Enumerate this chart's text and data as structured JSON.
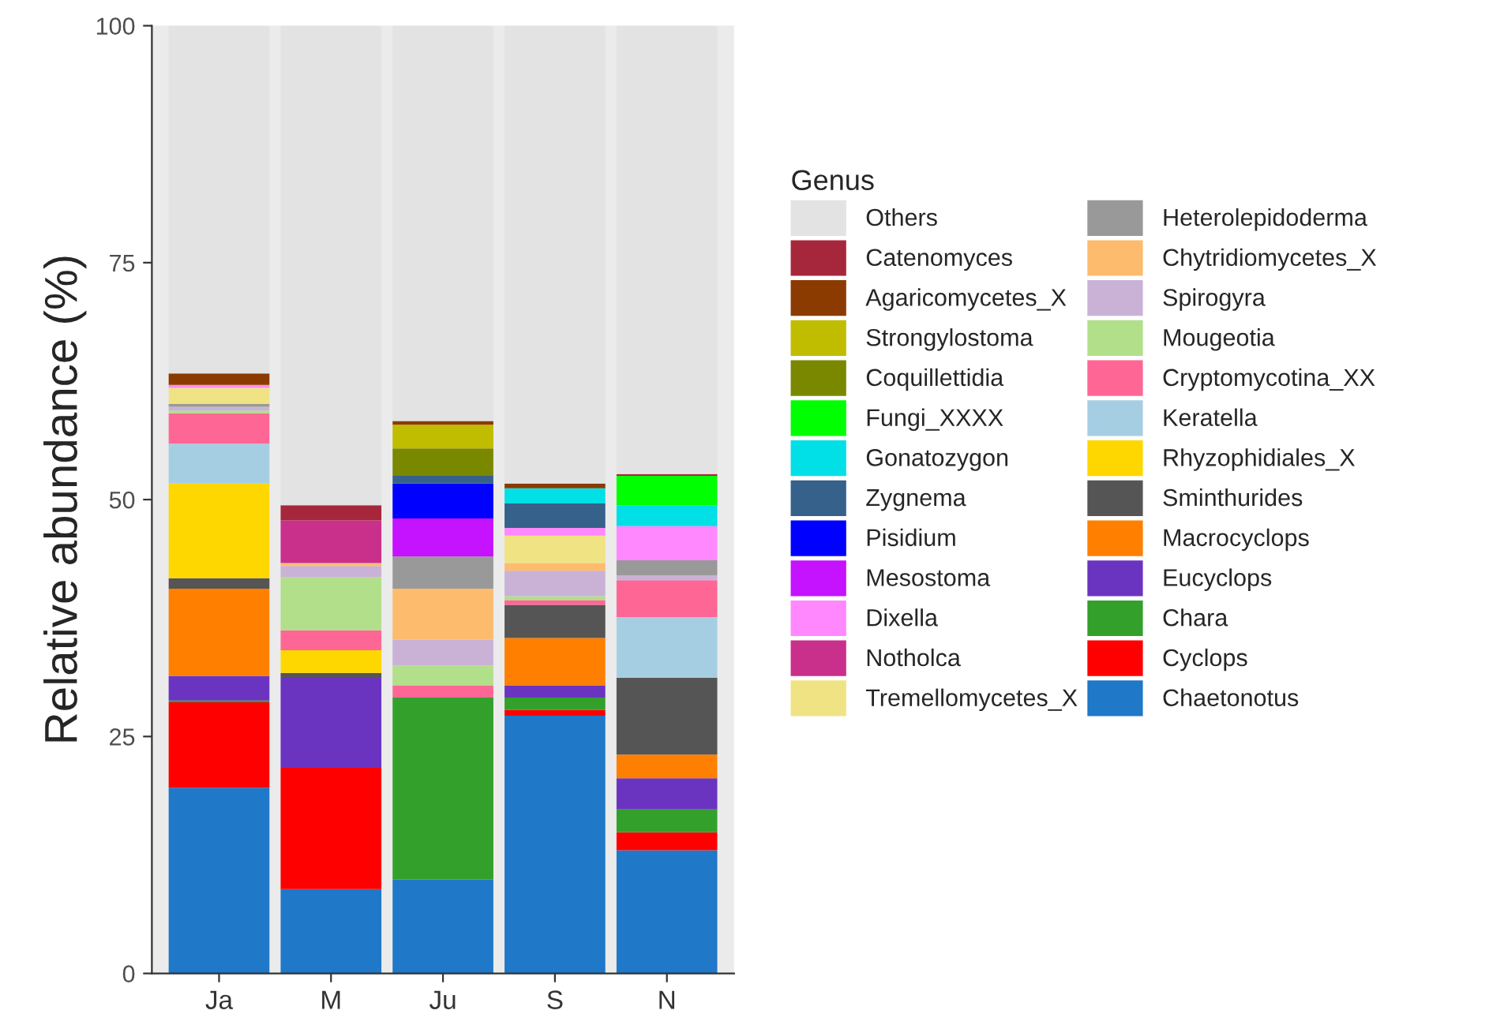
{
  "chart_data": {
    "type": "bar",
    "stacked": true,
    "ylabel": "Relative abundance (%)",
    "legend_title": "Genus",
    "legend": "right",
    "categories": [
      "Ja",
      "M",
      "Ju",
      "S",
      "N"
    ],
    "ylim": [
      0,
      100
    ],
    "yticks": [
      0,
      25,
      50,
      75,
      100
    ],
    "series": [
      {
        "name": "Chaetonotus",
        "color": "#1f78c8",
        "values": [
          19.6,
          8.9,
          9.9,
          27.2,
          13.0
        ]
      },
      {
        "name": "Cyclops",
        "color": "#ff0000",
        "values": [
          9.0,
          12.8,
          null,
          0.6,
          1.9
        ]
      },
      {
        "name": "Chara",
        "color": "#33a02c",
        "values": [
          0.2,
          null,
          19.2,
          1.3,
          2.4
        ]
      },
      {
        "name": "Eucyclops",
        "color": "#6a34c1",
        "values": [
          2.6,
          9.5,
          null,
          1.3,
          3.3
        ]
      },
      {
        "name": "Macrocyclops",
        "color": "#ff7f00",
        "values": [
          9.2,
          null,
          null,
          5.0,
          2.5
        ]
      },
      {
        "name": "Sminthurides",
        "color": "#555555",
        "values": [
          1.1,
          0.5,
          null,
          3.5,
          8.1
        ]
      },
      {
        "name": "Rhyzophidiales_X",
        "color": "#ffd700",
        "values": [
          10.0,
          2.4,
          null,
          null,
          null
        ]
      },
      {
        "name": "Keratella",
        "color": "#a6cee3",
        "values": [
          4.2,
          null,
          null,
          null,
          6.4
        ]
      },
      {
        "name": "Cryptomycotina_XX",
        "color": "#fe6795",
        "values": [
          3.2,
          2.1,
          1.3,
          0.5,
          3.9
        ]
      },
      {
        "name": "Mougeotia",
        "color": "#b2df8a",
        "values": [
          0.3,
          5.6,
          2.1,
          0.4,
          null
        ]
      },
      {
        "name": "Spirogyra",
        "color": "#c9b2d6",
        "values": [
          0.4,
          1.2,
          2.7,
          2.7,
          0.5
        ]
      },
      {
        "name": "Chytridiomycetes_X",
        "color": "#fdbb6e",
        "values": [
          null,
          0.3,
          5.4,
          0.8,
          null
        ]
      },
      {
        "name": "Heterolepidoderma",
        "color": "#999999",
        "values": [
          0.3,
          null,
          3.4,
          null,
          1.6
        ]
      },
      {
        "name": "Tremellomycetes_X",
        "color": "#efe384",
        "values": [
          1.7,
          null,
          null,
          2.9,
          null
        ]
      },
      {
        "name": "Notholca",
        "color": "#c9308c",
        "values": [
          null,
          4.5,
          null,
          null,
          null
        ]
      },
      {
        "name": "Dixella",
        "color": "#ff88ff",
        "values": [
          0.3,
          null,
          null,
          0.8,
          3.6
        ]
      },
      {
        "name": "Mesostoma",
        "color": "#c512ff",
        "values": [
          null,
          null,
          4.0,
          null,
          null
        ]
      },
      {
        "name": "Pisidium",
        "color": "#0000ff",
        "values": [
          null,
          null,
          3.7,
          null,
          null
        ]
      },
      {
        "name": "Zygnema",
        "color": "#35618b",
        "values": [
          null,
          null,
          0.8,
          2.6,
          null
        ]
      },
      {
        "name": "Gonatozygon",
        "color": "#00e0e6",
        "values": [
          null,
          null,
          null,
          1.6,
          2.2
        ]
      },
      {
        "name": "Fungi_XXXX",
        "color": "#00ff00",
        "values": [
          null,
          null,
          null,
          null,
          3.1
        ]
      },
      {
        "name": "Coquillettidia",
        "color": "#7a8800",
        "values": [
          null,
          null,
          2.9,
          null,
          null
        ]
      },
      {
        "name": "Strongylostoma",
        "color": "#c0bc00",
        "values": [
          null,
          null,
          2.5,
          null,
          null
        ]
      },
      {
        "name": "Agaricomycetes_X",
        "color": "#8b3a00",
        "values": [
          1.2,
          null,
          0.4,
          0.5,
          null
        ]
      },
      {
        "name": "Catenomyces",
        "color": "#a6273b",
        "values": [
          null,
          1.6,
          null,
          null,
          0.2
        ]
      },
      {
        "name": "Others",
        "color": "#e3e3e3",
        "values": [
          36.7,
          50.6,
          41.7,
          48.3,
          47.3
        ]
      }
    ]
  }
}
